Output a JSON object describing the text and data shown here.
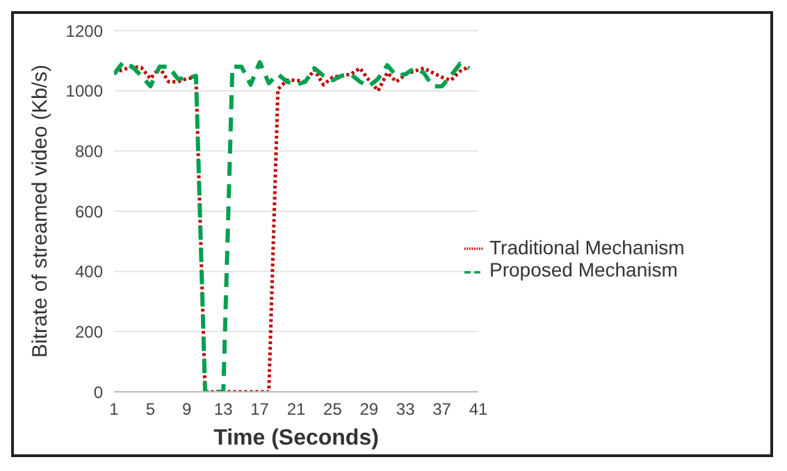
{
  "chart_data": {
    "type": "line",
    "xlabel": "Time (Seconds)",
    "ylabel": "Bitrate of streamed video (Kb/s)",
    "x": [
      1,
      2,
      3,
      4,
      5,
      6,
      7,
      8,
      9,
      10,
      11,
      12,
      13,
      14,
      15,
      16,
      17,
      18,
      19,
      20,
      21,
      22,
      23,
      24,
      25,
      26,
      27,
      28,
      29,
      30,
      31,
      32,
      33,
      34,
      35,
      36,
      37,
      38,
      39,
      40
    ],
    "series": [
      {
        "name": "Traditional Mechanism",
        "color": "#c00000",
        "line_style": "dotted",
        "values": [
          1060,
          1070,
          1080,
          1077,
          1040,
          1077,
          1030,
          1030,
          1040,
          1045,
          0,
          0,
          0,
          0,
          0,
          0,
          0,
          0,
          1005,
          1035,
          1035,
          1030,
          1070,
          1020,
          1045,
          1050,
          1055,
          1075,
          1035,
          1000,
          1060,
          1030,
          1055,
          1065,
          1075,
          1060,
          1045,
          1035,
          1065,
          1080
        ]
      },
      {
        "name": "Proposed Mechanism",
        "color": "#00a050",
        "line_style": "dashed",
        "values": [
          1055,
          1095,
          1080,
          1050,
          1015,
          1080,
          1080,
          1040,
          1040,
          1050,
          0,
          0,
          0,
          1080,
          1080,
          1020,
          1095,
          1025,
          1055,
          1030,
          1020,
          1030,
          1075,
          1050,
          1035,
          1050,
          1055,
          1030,
          1015,
          1040,
          1085,
          1050,
          1055,
          1075,
          1060,
          1015,
          1015,
          1050,
          1090,
          1075
        ]
      }
    ],
    "xlim": [
      1,
      41
    ],
    "xticks": [
      1,
      5,
      9,
      13,
      17,
      21,
      25,
      29,
      33,
      37,
      41
    ],
    "ylim": [
      0,
      1200
    ],
    "yticks": [
      0,
      200,
      400,
      600,
      800,
      1000,
      1200
    ],
    "grid": "y",
    "legend": "right",
    "marker": "none"
  }
}
